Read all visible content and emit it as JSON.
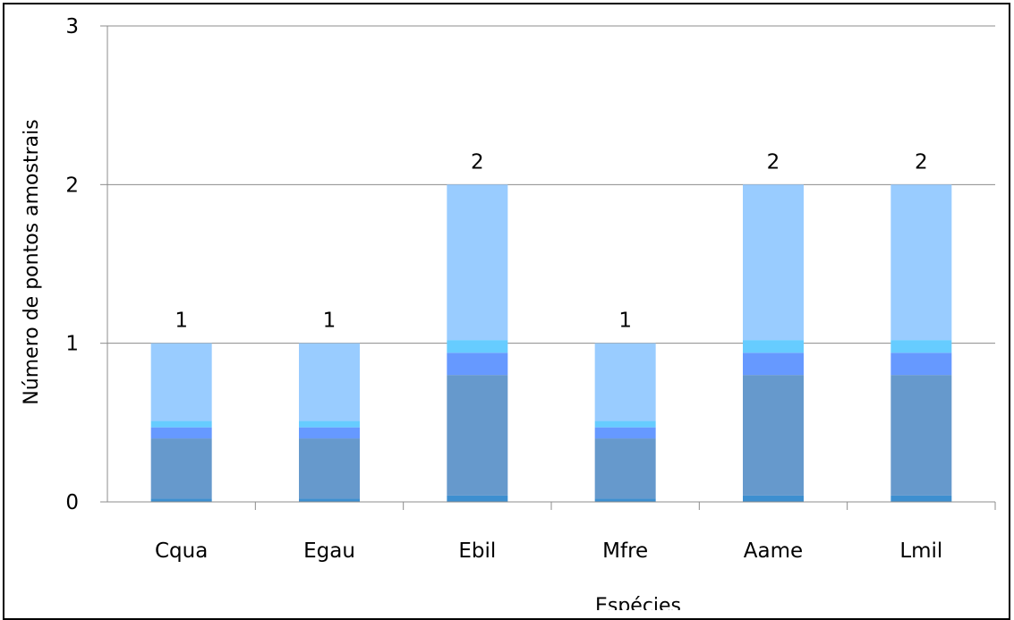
{
  "chart_data": {
    "type": "bar",
    "stacked": true,
    "categories": [
      "Cqua",
      "Egau",
      "Ebil",
      "Mfre",
      "Aame",
      "Lmil"
    ],
    "values": [
      1,
      1,
      2,
      1,
      2,
      2
    ],
    "data_labels": [
      "1",
      "1",
      "2",
      "1",
      "2",
      "2"
    ],
    "xlabel": "Espécies",
    "ylabel": "Número de pontos amostrais",
    "ylim": [
      0,
      3
    ],
    "yticks": [
      "0",
      "1",
      "2",
      "3"
    ],
    "grid": true,
    "legend": "none",
    "segment_fractions": [
      0.02,
      0.38,
      0.07,
      0.04,
      0.49
    ],
    "segment_colors": [
      "#3d8fd0",
      "#6699cc",
      "#6699ff",
      "#66ccff",
      "#99ccff"
    ]
  }
}
